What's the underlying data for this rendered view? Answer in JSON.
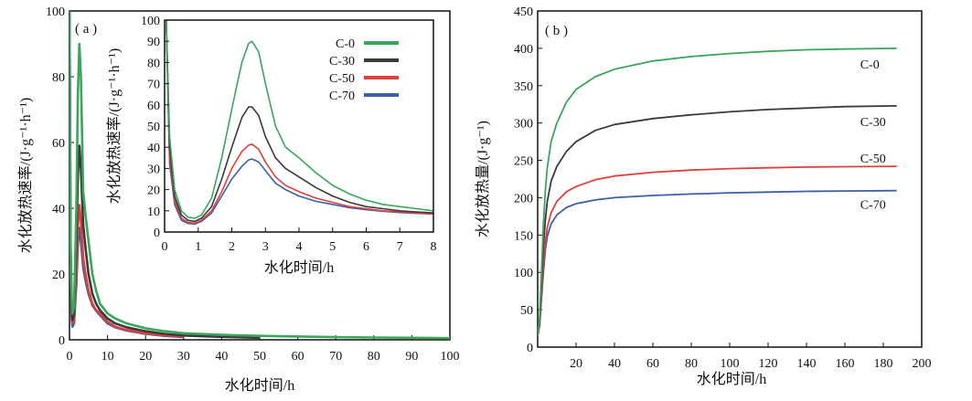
{
  "colors": {
    "C-0": "#3aa65a",
    "C-30": "#3a3a3a",
    "C-50": "#e0403a",
    "C-70": "#3d5fa8",
    "axis": "#111111"
  },
  "chart_data": [
    {
      "type": "line",
      "panel_label": "( a )",
      "xlabel": "水化时间/h",
      "ylabel": "水化放热速率/(J·g⁻¹·h⁻¹)",
      "xlim": [
        0,
        100
      ],
      "ylim": [
        0,
        100
      ],
      "xticks": [
        0,
        10,
        20,
        30,
        40,
        50,
        60,
        70,
        80,
        90,
        100
      ],
      "yticks": [
        0,
        20,
        40,
        60,
        80,
        100
      ],
      "series": [
        {
          "name": "C-0",
          "x": [
            0,
            0.3,
            0.6,
            0.8,
            1.2,
            1.8,
            2.2,
            2.6,
            3.0,
            3.6,
            4.2,
            5,
            6,
            7,
            8,
            10,
            12,
            15,
            20,
            25,
            30,
            40,
            50,
            60,
            70,
            80,
            90,
            100
          ],
          "y": [
            100,
            30,
            12,
            8,
            10,
            40,
            75,
            90,
            80,
            45,
            38,
            30,
            20,
            15,
            11,
            8,
            6.5,
            5,
            3.5,
            2.6,
            2,
            1.5,
            1.2,
            1,
            0.8,
            0.7,
            0.6,
            0.5
          ]
        },
        {
          "name": "C-30",
          "x": [
            0,
            0.3,
            0.6,
            0.8,
            1.2,
            1.8,
            2.2,
            2.6,
            3.0,
            3.6,
            4.2,
            5,
            6,
            7,
            8,
            10,
            12,
            15,
            20,
            25,
            30,
            40,
            50
          ],
          "y": [
            100,
            25,
            9,
            6,
            8,
            30,
            50,
            59,
            52,
            35,
            28,
            20,
            14,
            11,
            9,
            6.5,
            5,
            3.8,
            2.6,
            1.8,
            1.3,
            0.9,
            0.6
          ]
        },
        {
          "name": "C-50",
          "x": [
            0,
            0.3,
            0.6,
            0.8,
            1.2,
            1.8,
            2.2,
            2.6,
            3.0,
            3.6,
            4.2,
            5,
            6,
            7,
            8,
            10,
            12,
            15,
            20,
            25,
            30
          ],
          "y": [
            100,
            22,
            7,
            5,
            6,
            20,
            35,
            41,
            36,
            25,
            20,
            15,
            11,
            9,
            8,
            5.5,
            4,
            3,
            2,
            1.4,
            1
          ]
        },
        {
          "name": "C-70",
          "x": [
            0,
            0.3,
            0.6,
            0.8,
            1.2,
            1.8,
            2.2,
            2.6,
            3.0,
            3.6,
            4.2,
            5,
            6,
            7,
            8,
            10,
            12,
            15,
            20,
            25,
            30
          ],
          "y": [
            100,
            20,
            6,
            4,
            5,
            17,
            29,
            34,
            30,
            22,
            18,
            14,
            10.5,
            8.8,
            7.5,
            5,
            3.8,
            2.8,
            1.8,
            1.2,
            0.8
          ]
        }
      ]
    },
    {
      "type": "line",
      "inset_of": "( a )",
      "xlabel": "水化时间/h",
      "ylabel": "水化放热速率/(J·g⁻¹·h⁻¹)",
      "xlim": [
        0,
        8
      ],
      "ylim": [
        0,
        100
      ],
      "xticks": [
        0,
        1,
        2,
        3,
        4,
        5,
        6,
        7,
        8
      ],
      "yticks": [
        0,
        10,
        20,
        30,
        40,
        50,
        60,
        70,
        80,
        90,
        100
      ],
      "legend": {
        "entries": [
          "C-0",
          "C-30",
          "C-50",
          "C-70"
        ],
        "placement": "top-right"
      },
      "series": [
        {
          "name": "C-0",
          "x": [
            0.05,
            0.15,
            0.3,
            0.5,
            0.7,
            0.9,
            1.1,
            1.4,
            1.7,
            2.0,
            2.3,
            2.5,
            2.6,
            2.8,
            3.0,
            3.3,
            3.6,
            4.0,
            4.5,
            5.0,
            5.5,
            6.0,
            6.5,
            7.0,
            7.5,
            8.0
          ],
          "y": [
            100,
            45,
            20,
            10,
            7,
            6.5,
            8,
            16,
            35,
            58,
            80,
            89,
            90,
            85,
            70,
            50,
            40,
            35,
            28,
            22,
            18,
            15,
            13,
            12,
            11,
            10
          ]
        },
        {
          "name": "C-30",
          "x": [
            0.05,
            0.15,
            0.3,
            0.5,
            0.7,
            0.9,
            1.1,
            1.4,
            1.7,
            2.0,
            2.3,
            2.5,
            2.6,
            2.8,
            3.0,
            3.3,
            3.6,
            4.0,
            4.5,
            5.0,
            5.5,
            6.0,
            6.5,
            7.0,
            7.5,
            8.0
          ],
          "y": [
            100,
            40,
            17,
            8,
            5.5,
            5,
            6.5,
            12,
            25,
            40,
            54,
            59,
            59,
            55,
            45,
            35,
            30,
            26,
            21,
            17,
            14,
            12,
            11,
            10,
            9.5,
            9
          ]
        },
        {
          "name": "C-50",
          "x": [
            0.05,
            0.15,
            0.3,
            0.5,
            0.7,
            0.9,
            1.1,
            1.4,
            1.7,
            2.0,
            2.3,
            2.5,
            2.6,
            2.8,
            3.0,
            3.3,
            3.6,
            4.0,
            4.5,
            5.0,
            5.5,
            6.0,
            6.5,
            7.0,
            7.5,
            8.0
          ],
          "y": [
            100,
            35,
            15,
            6.5,
            4.5,
            4.2,
            5.5,
            10,
            19,
            30,
            38,
            41,
            41.5,
            39,
            33,
            26,
            22,
            19,
            16,
            14,
            12,
            11,
            10,
            9.5,
            9,
            8.5
          ]
        },
        {
          "name": "C-70",
          "x": [
            0.05,
            0.15,
            0.3,
            0.5,
            0.7,
            0.9,
            1.1,
            1.4,
            1.7,
            2.0,
            2.3,
            2.5,
            2.6,
            2.8,
            3.0,
            3.3,
            3.6,
            4.0,
            4.5,
            5.0,
            5.5,
            6.0,
            6.5,
            7.0,
            7.5,
            8.0
          ],
          "y": [
            100,
            32,
            13,
            5.5,
            4,
            3.8,
            5,
            9,
            17,
            25,
            31,
            34,
            34.5,
            33,
            29,
            23,
            20,
            17,
            14.5,
            13,
            11.5,
            10.5,
            9.8,
            9.2,
            8.8,
            8.5
          ]
        }
      ]
    },
    {
      "type": "line",
      "panel_label": "( b )",
      "xlabel": "水化时间/h",
      "ylabel": "水化放热量/(J·g⁻¹)",
      "xlim": [
        0,
        200
      ],
      "ylim": [
        0,
        450
      ],
      "xticks": [
        20,
        40,
        60,
        80,
        100,
        120,
        140,
        160,
        180,
        200
      ],
      "yticks": [
        0,
        50,
        100,
        150,
        200,
        250,
        300,
        350,
        400,
        450
      ],
      "series": [
        {
          "name": "C-0",
          "x": [
            0,
            1,
            2,
            3,
            4,
            5,
            7,
            10,
            15,
            20,
            30,
            40,
            60,
            80,
            100,
            120,
            140,
            160,
            187
          ],
          "y": [
            15,
            40,
            100,
            165,
            210,
            240,
            275,
            300,
            328,
            345,
            362,
            372,
            383,
            389,
            393,
            396,
            398,
            399,
            400
          ]
        },
        {
          "name": "C-30",
          "x": [
            0,
            1,
            2,
            3,
            4,
            5,
            7,
            10,
            15,
            20,
            30,
            40,
            60,
            80,
            100,
            120,
            140,
            160,
            187
          ],
          "y": [
            15,
            35,
            85,
            135,
            170,
            195,
            222,
            242,
            262,
            275,
            290,
            298,
            306,
            311,
            315,
            318,
            320,
            322,
            323
          ]
        },
        {
          "name": "C-50",
          "x": [
            0,
            1,
            2,
            3,
            4,
            5,
            7,
            10,
            15,
            20,
            30,
            40,
            60,
            80,
            100,
            120,
            140,
            160,
            187
          ],
          "y": [
            15,
            30,
            70,
            110,
            140,
            160,
            180,
            195,
            208,
            215,
            224,
            229,
            234,
            237,
            239,
            240,
            241,
            241.5,
            242
          ]
        },
        {
          "name": "C-70",
          "x": [
            0,
            1,
            2,
            3,
            4,
            5,
            7,
            10,
            15,
            20,
            30,
            40,
            60,
            80,
            100,
            120,
            140,
            160,
            187
          ],
          "y": [
            15,
            28,
            65,
            100,
            130,
            148,
            165,
            177,
            187,
            192,
            197,
            200,
            203,
            205,
            206.5,
            207.5,
            208.5,
            209,
            209.5
          ]
        }
      ],
      "curve_labels": [
        "C-0",
        "C-30",
        "C-50",
        "C-70"
      ]
    }
  ]
}
